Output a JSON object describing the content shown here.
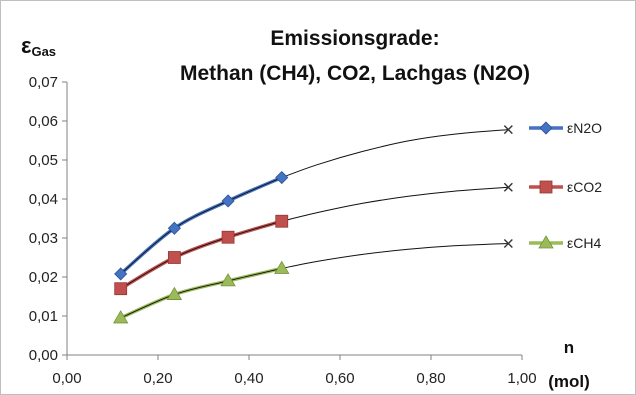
{
  "chart_data": {
    "type": "line",
    "title_line1": "Emissionsgrade:",
    "title_line2": "Methan (CH4), CO2, Lachgas (N2O)",
    "ylabel_main": "ε",
    "ylabel_sub": "Gas",
    "xlabel_line1": "n",
    "xlabel_line2": "(mol)",
    "xlim": [
      0,
      1.0
    ],
    "ylim": [
      0,
      0.07
    ],
    "x_ticks": [
      "0,00",
      "0,20",
      "0,40",
      "0,60",
      "0,80",
      "1,00"
    ],
    "y_ticks": [
      "0,00",
      "0,01",
      "0,02",
      "0,03",
      "0,04",
      "0,05",
      "0,06",
      "0,07"
    ],
    "grid": false,
    "legend_position": "right",
    "series": [
      {
        "name": "εN2O",
        "color": "#4472C4",
        "marker": "diamond",
        "x": [
          0.118,
          0.236,
          0.354,
          0.472
        ],
        "y": [
          0.0208,
          0.0325,
          0.0395,
          0.0455
        ],
        "extrapolation": {
          "x": [
            0.472,
            0.55,
            0.65,
            0.75,
            0.85,
            0.97
          ],
          "y": [
            0.0455,
            0.0488,
            0.0522,
            0.0549,
            0.0566,
            0.0578
          ],
          "end_marker": "x"
        }
      },
      {
        "name": "εCO2",
        "color": "#C0504D",
        "marker": "square",
        "x": [
          0.118,
          0.236,
          0.354,
          0.472
        ],
        "y": [
          0.017,
          0.025,
          0.0302,
          0.0343
        ],
        "extrapolation": {
          "x": [
            0.472,
            0.55,
            0.65,
            0.75,
            0.85,
            0.97
          ],
          "y": [
            0.0343,
            0.0365,
            0.0389,
            0.0407,
            0.042,
            0.043
          ],
          "end_marker": "x"
        }
      },
      {
        "name": "εCH4",
        "color": "#9BBB59",
        "marker": "triangle",
        "x": [
          0.118,
          0.236,
          0.354,
          0.472
        ],
        "y": [
          0.0095,
          0.0155,
          0.019,
          0.0222
        ],
        "extrapolation": {
          "x": [
            0.472,
            0.55,
            0.65,
            0.75,
            0.85,
            0.97
          ],
          "y": [
            0.0222,
            0.024,
            0.0258,
            0.0271,
            0.028,
            0.0286
          ],
          "end_marker": "x"
        }
      }
    ]
  }
}
